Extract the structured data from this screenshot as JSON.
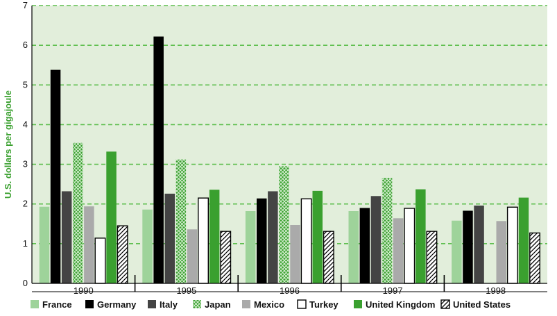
{
  "chart_data": {
    "type": "bar",
    "ylabel": "U.S. dollars per gigajoule",
    "ylim": [
      0,
      7
    ],
    "yticks": [
      "0",
      "1",
      "2",
      "3",
      "4",
      "5",
      "6",
      "7"
    ],
    "categories": [
      "1990",
      "1995",
      "1996",
      "1997",
      "1998"
    ],
    "grid": "dashed horizontal",
    "legend_position": "bottom",
    "series": [
      {
        "name": "France",
        "color": "#9ed39a",
        "pattern": "solid",
        "values": [
          1.93,
          1.86,
          1.82,
          1.82,
          1.58
        ]
      },
      {
        "name": "Germany",
        "color": "#000000",
        "pattern": "solid",
        "values": [
          5.38,
          6.22,
          2.14,
          1.9,
          1.83
        ]
      },
      {
        "name": "Italy",
        "color": "#444444",
        "pattern": "solid",
        "values": [
          2.32,
          2.26,
          2.32,
          2.2,
          1.96
        ]
      },
      {
        "name": "Japan",
        "color": "#3aa02f",
        "pattern": "crosshatch",
        "values": [
          3.54,
          3.12,
          2.95,
          2.66,
          null
        ]
      },
      {
        "name": "Mexico",
        "color": "#aaaaaa",
        "pattern": "solid",
        "values": [
          1.94,
          1.36,
          1.47,
          1.64,
          1.57
        ]
      },
      {
        "name": "Turkey",
        "color": "#ffffff",
        "pattern": "outline",
        "values": [
          1.14,
          2.15,
          2.13,
          1.89,
          1.92
        ]
      },
      {
        "name": "United Kingdom",
        "color": "#3aa02f",
        "pattern": "solid",
        "values": [
          3.32,
          2.36,
          2.33,
          2.37,
          2.16
        ]
      },
      {
        "name": "United States",
        "color": "#ffffff",
        "pattern": "diagonal",
        "values": [
          1.45,
          1.31,
          1.31,
          1.31,
          1.27
        ]
      }
    ]
  }
}
